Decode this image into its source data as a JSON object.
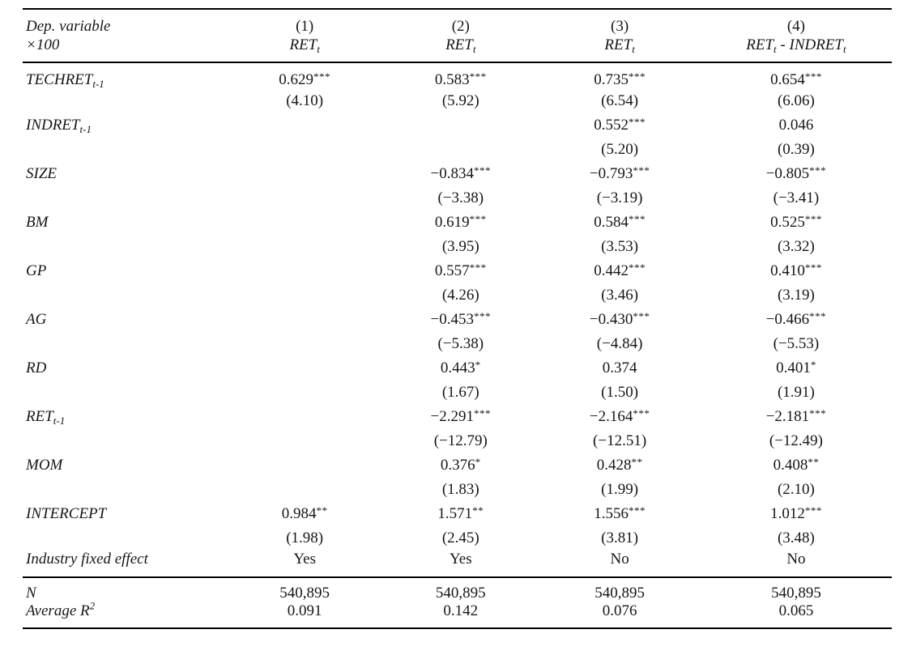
{
  "colors": {
    "background": "#ffffff",
    "text": "#161616",
    "rule": "#000000"
  },
  "table": {
    "header": {
      "row_label_lines": [
        "Dep. variable",
        "×100"
      ],
      "columns": [
        {
          "number": "(1)",
          "dep": [
            {
              "text": "RET",
              "sub": "t"
            }
          ]
        },
        {
          "number": "(2)",
          "dep": [
            {
              "text": "RET",
              "sub": "t"
            }
          ]
        },
        {
          "number": "(3)",
          "dep": [
            {
              "text": "RET",
              "sub": "t"
            }
          ]
        },
        {
          "number": "(4)",
          "dep": [
            {
              "text": "RET",
              "sub": "t"
            },
            {
              "text": " - "
            },
            {
              "text": "INDRET",
              "sub": "t"
            }
          ]
        }
      ]
    },
    "body_rows": [
      {
        "label": {
          "text": "TECHRET",
          "sub": "t-1"
        },
        "cells": [
          {
            "coef": "0.629",
            "stars": "***",
            "tstat": "(4.10)"
          },
          {
            "coef": "0.583",
            "stars": "***",
            "tstat": "(5.92)"
          },
          {
            "coef": "0.735",
            "stars": "***",
            "tstat": "(6.54)"
          },
          {
            "coef": "0.654",
            "stars": "***",
            "tstat": "(6.06)"
          }
        ]
      },
      {
        "label": {
          "text": "INDRET",
          "sub": "t-1"
        },
        "cells": [
          null,
          null,
          {
            "coef": "0.552",
            "stars": "***",
            "tstat": "(5.20)"
          },
          {
            "coef": "0.046",
            "stars": "",
            "tstat": "(0.39)"
          }
        ]
      },
      {
        "label": {
          "text": "SIZE"
        },
        "cells": [
          null,
          {
            "coef": "−0.834",
            "stars": "***",
            "tstat": "(−3.38)"
          },
          {
            "coef": "−0.793",
            "stars": "***",
            "tstat": "(−3.19)"
          },
          {
            "coef": "−0.805",
            "stars": "***",
            "tstat": "(−3.41)"
          }
        ]
      },
      {
        "label": {
          "text": "BM"
        },
        "cells": [
          null,
          {
            "coef": "0.619",
            "stars": "***",
            "tstat": "(3.95)"
          },
          {
            "coef": "0.584",
            "stars": "***",
            "tstat": "(3.53)"
          },
          {
            "coef": "0.525",
            "stars": "***",
            "tstat": "(3.32)"
          }
        ]
      },
      {
        "label": {
          "text": "GP"
        },
        "cells": [
          null,
          {
            "coef": "0.557",
            "stars": "***",
            "tstat": "(4.26)"
          },
          {
            "coef": "0.442",
            "stars": "***",
            "tstat": "(3.46)"
          },
          {
            "coef": "0.410",
            "stars": "***",
            "tstat": "(3.19)"
          }
        ]
      },
      {
        "label": {
          "text": "AG"
        },
        "cells": [
          null,
          {
            "coef": "−0.453",
            "stars": "***",
            "tstat": "(−5.38)"
          },
          {
            "coef": "−0.430",
            "stars": "***",
            "tstat": "(−4.84)"
          },
          {
            "coef": "−0.466",
            "stars": "***",
            "tstat": "(−5.53)"
          }
        ]
      },
      {
        "label": {
          "text": "RD"
        },
        "cells": [
          null,
          {
            "coef": "0.443",
            "stars": "*",
            "tstat": "(1.67)"
          },
          {
            "coef": "0.374",
            "stars": "",
            "tstat": "(1.50)"
          },
          {
            "coef": "0.401",
            "stars": "*",
            "tstat": "(1.91)"
          }
        ]
      },
      {
        "label": {
          "text": "RET",
          "sub": "t-1"
        },
        "cells": [
          null,
          {
            "coef": "−2.291",
            "stars": "***",
            "tstat": "(−12.79)"
          },
          {
            "coef": "−2.164",
            "stars": "***",
            "tstat": "(−12.51)"
          },
          {
            "coef": "−2.181",
            "stars": "***",
            "tstat": "(−12.49)"
          }
        ]
      },
      {
        "label": {
          "text": "MOM"
        },
        "cells": [
          null,
          {
            "coef": "0.376",
            "stars": "*",
            "tstat": "(1.83)"
          },
          {
            "coef": "0.428",
            "stars": "**",
            "tstat": "(1.99)"
          },
          {
            "coef": "0.408",
            "stars": "**",
            "tstat": "(2.10)"
          }
        ]
      },
      {
        "label": {
          "text": "INTERCEPT"
        },
        "cells": [
          {
            "coef": "0.984",
            "stars": "**",
            "tstat": "(1.98)"
          },
          {
            "coef": "1.571",
            "stars": "**",
            "tstat": "(2.45)"
          },
          {
            "coef": "1.556",
            "stars": "***",
            "tstat": "(3.81)"
          },
          {
            "coef": "1.012",
            "stars": "***",
            "tstat": "(3.48)"
          }
        ]
      },
      {
        "label": {
          "text": "Industry fixed effect"
        },
        "values": [
          "Yes",
          "Yes",
          "No",
          "No"
        ]
      }
    ],
    "footer_rows": [
      {
        "label": {
          "text": "N"
        },
        "values": [
          "540,895",
          "540,895",
          "540,895",
          "540,895"
        ]
      },
      {
        "label": {
          "text": "Average R",
          "sup": "2"
        },
        "values": [
          "0.091",
          "0.142",
          "0.076",
          "0.065"
        ]
      }
    ]
  }
}
